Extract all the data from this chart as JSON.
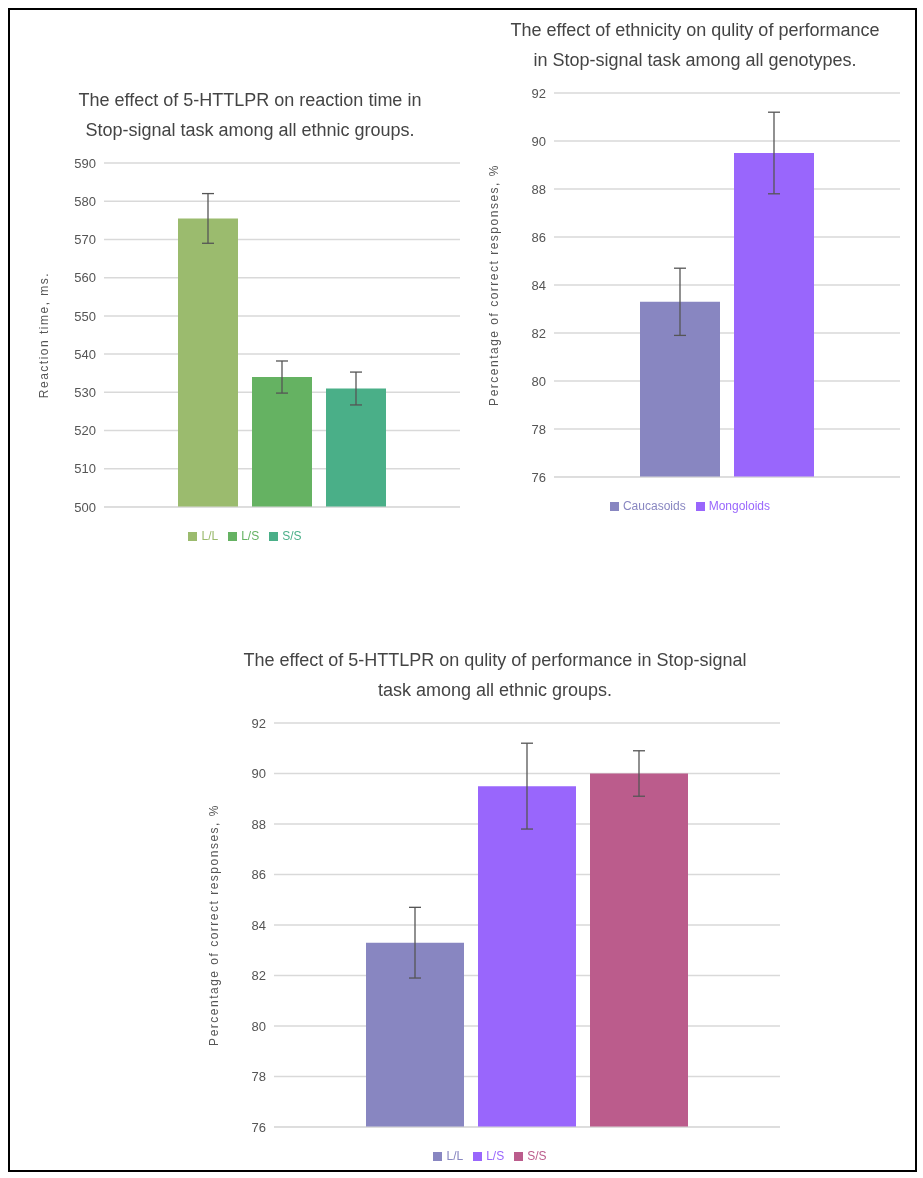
{
  "chart_data": [
    {
      "type": "bar",
      "title": "The effect of 5-HTTLPR on reaction time in Stop-signal task among all ethnic groups.",
      "ylabel": "Reaction time, ms.",
      "categories": [
        null
      ],
      "series": [
        {
          "name": "L/L",
          "color": "#9bbb6e",
          "values": [
            575.5
          ],
          "errors": [
            6.5
          ]
        },
        {
          "name": "L/S",
          "color": "#65b262",
          "values": [
            534
          ],
          "errors": [
            4.2
          ]
        },
        {
          "name": "S/S",
          "color": "#4aaf88",
          "values": [
            531
          ],
          "errors": [
            4.3
          ]
        }
      ],
      "ylim": [
        500,
        590
      ],
      "yticks": [
        500,
        510,
        520,
        530,
        540,
        550,
        560,
        570,
        580,
        590
      ],
      "grid": "y",
      "legend": "bottom",
      "tick_labels": "y"
    },
    {
      "type": "bar",
      "title": "The effect of ethnicity on qulity of performance in Stop-signal task among all genotypes.",
      "ylabel": "Percentage of correct responses, %",
      "categories": [
        null
      ],
      "series": [
        {
          "name": "Caucasoids",
          "color": "#8886c1",
          "values": [
            83.3
          ],
          "errors": [
            1.4
          ]
        },
        {
          "name": "Mongoloids",
          "color": "#9966fc",
          "values": [
            89.5
          ],
          "errors": [
            1.7
          ]
        }
      ],
      "ylim": [
        76,
        92
      ],
      "yticks": [
        76,
        78,
        80,
        82,
        84,
        86,
        88,
        90,
        92
      ],
      "grid": "y",
      "legend": "bottom",
      "tick_labels": "y"
    },
    {
      "type": "bar",
      "title": "The effect of 5-HTTLPR on qulity of performance in Stop-signal task among all ethnic groups.",
      "ylabel": "Percentage of correct responses, %",
      "categories": [
        null
      ],
      "series": [
        {
          "name": "L/L",
          "color": "#8886c1",
          "values": [
            83.3
          ],
          "errors": [
            1.4
          ]
        },
        {
          "name": "L/S",
          "color": "#9966fc",
          "values": [
            89.5
          ],
          "errors": [
            1.7
          ]
        },
        {
          "name": "S/S",
          "color": "#bb5c8c",
          "values": [
            90.0
          ],
          "errors": [
            0.9
          ]
        }
      ],
      "ylim": [
        76,
        92
      ],
      "yticks": [
        76,
        78,
        80,
        82,
        84,
        86,
        88,
        90,
        92
      ],
      "grid": "y",
      "legend": "bottom",
      "tick_labels": "y"
    }
  ]
}
